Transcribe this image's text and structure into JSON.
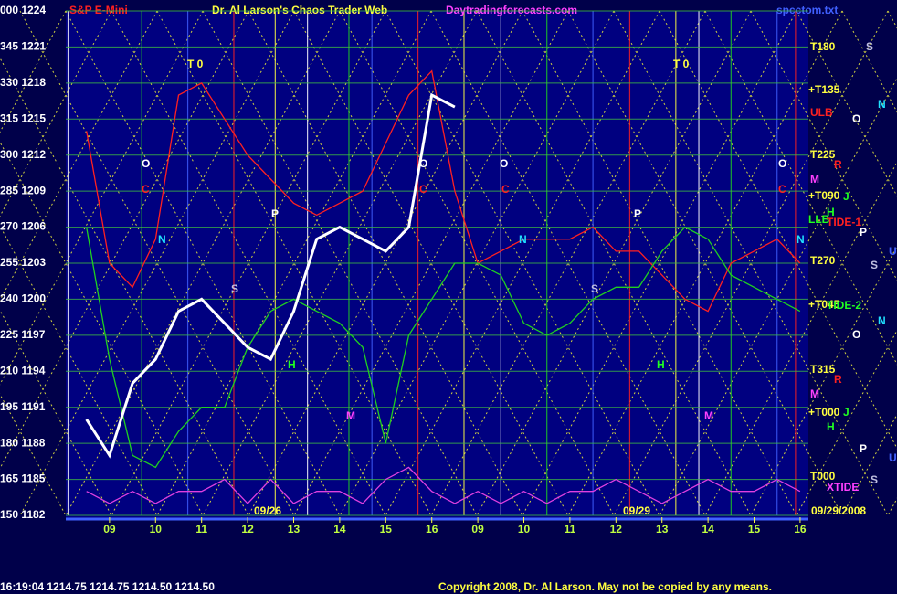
{
  "chart_data": {
    "type": "line",
    "title": "Dr. Al Larson's Chaos Trader Web",
    "instrument": "S&P E-Mini",
    "site": "Daytradingforecasts.com",
    "file": "spcctom.txt",
    "status": "16:19:04  1214.75  1214.75  1214.50  1214.50",
    "copyright": "Copyright 2008, Dr. Al Larson. May not be copied by any means.",
    "dates": [
      "09/26",
      "09/29",
      "09/29/2008"
    ],
    "x": [
      -0.5,
      0,
      0.5,
      1,
      1.5,
      2,
      2.5,
      3,
      3.5,
      4,
      4.5,
      5,
      5.5,
      6,
      6.5,
      7,
      7.5,
      8,
      8.5,
      9,
      9.5,
      10,
      10.5,
      11,
      11.5,
      12,
      12.5,
      13,
      13.5,
      14,
      14.5,
      15
    ],
    "series": [
      {
        "color": "#ff2020",
        "values": [
          1214,
          1203,
          1201,
          1205,
          1217,
          1218,
          1215,
          1212,
          1210,
          1208,
          1207,
          1208,
          1209,
          1213,
          1217,
          1219,
          1209,
          1203,
          1204,
          1205,
          1205,
          1205,
          1206,
          1204,
          1204,
          1202,
          1200,
          1199,
          1203,
          1204,
          1205,
          1203
        ]
      },
      {
        "color": "#20d020",
        "values": [
          1206,
          1195,
          1187,
          1186,
          1189,
          1191,
          1191,
          1196,
          1199,
          1200,
          1199,
          1198,
          1196,
          1188,
          1197,
          1200,
          1203,
          1203,
          1202,
          1198,
          1197,
          1198,
          1200,
          1201,
          1201,
          1204,
          1206,
          1205,
          1202,
          1201,
          1200,
          1199
        ]
      },
      {
        "color": "#e040e0",
        "values": [
          1184,
          1183,
          1184,
          1183,
          1184,
          1184,
          1185,
          1183,
          1185,
          1183,
          1184,
          1184,
          1183,
          1185,
          1186,
          1184,
          1183,
          1184,
          1183,
          1184,
          1183,
          1184,
          1184,
          1185,
          1184,
          1183,
          1184,
          1185,
          1184,
          1184,
          1185,
          1184
        ]
      },
      {
        "color": "#ffffff",
        "values": [
          1190,
          1187,
          1193,
          1195,
          1199,
          1200,
          1198,
          1196,
          1195,
          1199,
          1205,
          1206,
          1205,
          1204,
          1206,
          1217,
          1216,
          null,
          null,
          null,
          null,
          null,
          null,
          null,
          null,
          null,
          null,
          null,
          null,
          null,
          null,
          null
        ]
      }
    ],
    "xlim": [
      -0.95,
      15.18
    ],
    "xticks": [
      {
        "value": 0,
        "label": "09"
      },
      {
        "value": 1,
        "label": "10"
      },
      {
        "value": 2,
        "label": "11"
      },
      {
        "value": 3,
        "label": "12"
      },
      {
        "value": 4,
        "label": "13"
      },
      {
        "value": 5,
        "label": "14"
      },
      {
        "value": 6,
        "label": "15"
      },
      {
        "value": 7,
        "label": "16"
      },
      {
        "value": 8,
        "label": "09"
      },
      {
        "value": 9,
        "label": "10"
      },
      {
        "value": 10,
        "label": "11"
      },
      {
        "value": 11,
        "label": "12"
      },
      {
        "value": 12,
        "label": "13"
      },
      {
        "value": 13,
        "label": "14"
      },
      {
        "value": 14,
        "label": "15"
      },
      {
        "value": 15,
        "label": "16"
      }
    ],
    "ylim": [
      1182,
      1224
    ],
    "yticks": [
      {
        "value": 1224,
        "label": "000 1224"
      },
      {
        "value": 1221,
        "label": "345 1221"
      },
      {
        "value": 1218,
        "label": "330 1218"
      },
      {
        "value": 1215,
        "label": "315 1215"
      },
      {
        "value": 1212,
        "label": "300 1212"
      },
      {
        "value": 1209,
        "label": "285 1209"
      },
      {
        "value": 1206,
        "label": "270 1206"
      },
      {
        "value": 1203,
        "label": "255 1203"
      },
      {
        "value": 1200,
        "label": "240 1200"
      },
      {
        "value": 1197,
        "label": "225 1197"
      },
      {
        "value": 1194,
        "label": "210 1194"
      },
      {
        "value": 1191,
        "label": "195 1191"
      },
      {
        "value": 1188,
        "label": "180 1188"
      },
      {
        "value": 1185,
        "label": "165 1185"
      },
      {
        "value": 1182,
        "label": "150 1182"
      }
    ],
    "grid": true,
    "annotations": [
      "T180",
      "+T135",
      "ULB",
      "T225",
      "M",
      "+T090",
      "LLB",
      "TIDE-1",
      "T270",
      "+T045",
      "TIDE-2",
      "T315",
      "M",
      "+T000",
      "T000",
      "XTIDE",
      "S",
      "N",
      "O",
      "R",
      "J",
      "H",
      "P",
      "U",
      "S",
      "N",
      "O",
      "R",
      "J",
      "H",
      "P",
      "U",
      "S",
      "T 0",
      "T 0",
      "O",
      "O",
      "O",
      "O",
      "P",
      "P",
      "N",
      "N",
      "N",
      "S",
      "S",
      "H",
      "H",
      "C",
      "C",
      "C",
      "C",
      "M",
      "M"
    ]
  }
}
